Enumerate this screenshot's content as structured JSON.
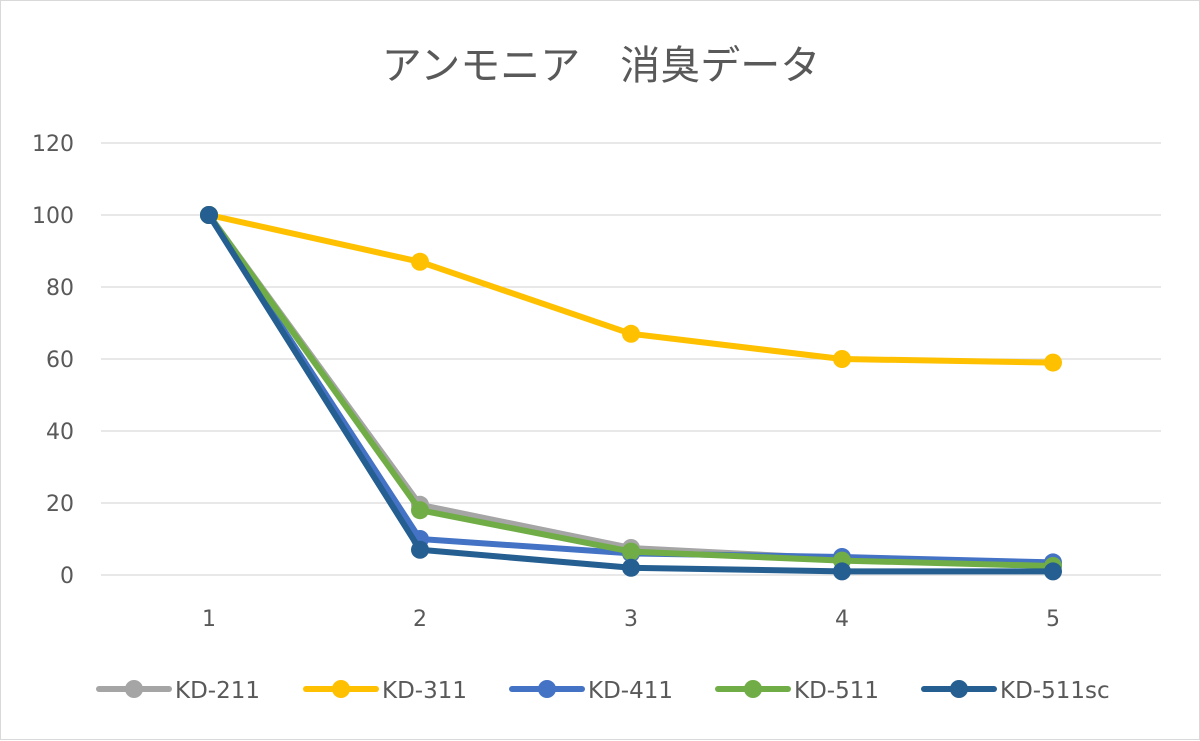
{
  "chart_data": {
    "type": "line",
    "title": "アンモニア　消臭データ",
    "xlabel": "",
    "ylabel": "",
    "categories": [
      "1",
      "2",
      "3",
      "4",
      "5"
    ],
    "ylim": [
      0,
      120
    ],
    "yticks": [
      0,
      20,
      40,
      60,
      80,
      100,
      120
    ],
    "grid": true,
    "legend": "bottom",
    "series": [
      {
        "name": "KD-211",
        "color": "#a5a5a5",
        "values": [
          100,
          19.5,
          7.5,
          4.5,
          2.5
        ]
      },
      {
        "name": "KD-311",
        "color": "#ffc000",
        "values": [
          100,
          87,
          67,
          60,
          59
        ]
      },
      {
        "name": "KD-411",
        "color": "#4472c4",
        "values": [
          100,
          10,
          6,
          5,
          3.5
        ]
      },
      {
        "name": "KD-511",
        "color": "#70ad47",
        "values": [
          100,
          18,
          6.5,
          4,
          2.5
        ]
      },
      {
        "name": "KD-511sc",
        "color": "#255e91",
        "values": [
          100,
          7,
          2,
          1,
          1
        ]
      }
    ]
  }
}
